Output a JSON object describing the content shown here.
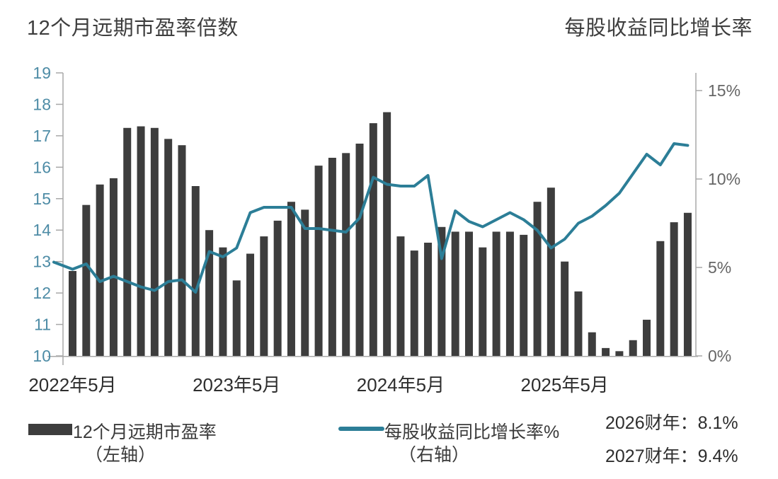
{
  "header": {
    "title_left": "12个月远期市盈率倍数",
    "title_right": "每股收益同比增长率"
  },
  "legend": {
    "bar_label": "12个月远期市盈率",
    "bar_sublabel": "（左轴）",
    "line_label": "每股收益同比增长率%",
    "line_sublabel": "（右轴）"
  },
  "annotations": {
    "fy2026": "2026财年：8.1%",
    "fy2027": "2027财年：9.4%"
  },
  "colors": {
    "bar": "#3d3d3d",
    "line": "#2c7e97",
    "axis": "#a8a8a8",
    "left_tick_label": "#4e8ca6",
    "right_tick_label": "#666666",
    "x_tick_label": "#2e2e2e"
  },
  "chart_data": {
    "type": "bar+line dual-axis",
    "title_left": "12个月远期市盈率倍数",
    "title_right": "每股收益同比增长率",
    "categories": [
      "2022-05",
      "2022-06",
      "2022-07",
      "2022-08",
      "2022-09",
      "2022-10",
      "2022-11",
      "2022-12",
      "2023-01",
      "2023-02",
      "2023-03",
      "2023-04",
      "2023-05",
      "2023-06",
      "2023-07",
      "2023-08",
      "2023-09",
      "2023-10",
      "2023-11",
      "2023-12",
      "2024-01",
      "2024-02",
      "2024-03",
      "2024-04",
      "2024-05",
      "2024-06",
      "2024-07",
      "2024-08",
      "2024-09",
      "2024-10",
      "2024-11",
      "2024-12",
      "2025-01",
      "2025-02",
      "2025-03",
      "2025-04",
      "2025-05",
      "2025-06",
      "2025-07",
      "2025-08",
      "2025-09",
      "2025-10",
      "2025-11",
      "2025-12",
      "2026-01",
      "2026-02"
    ],
    "series": [
      {
        "name": "12个月远期市盈率（左轴）",
        "type": "bar",
        "axis": "left",
        "values": [
          12.7,
          14.8,
          15.45,
          15.65,
          17.25,
          17.3,
          17.25,
          16.9,
          16.7,
          15.4,
          14.0,
          13.45,
          12.4,
          13.25,
          13.8,
          14.3,
          14.9,
          14.65,
          16.05,
          16.3,
          16.45,
          16.75,
          17.4,
          17.75,
          13.8,
          13.35,
          13.6,
          14.1,
          13.95,
          13.95,
          13.45,
          13.95,
          13.95,
          13.85,
          14.9,
          15.35,
          13.0,
          12.05,
          10.75,
          10.25,
          10.15,
          10.5,
          11.15,
          13.65,
          14.25,
          14.55
        ]
      },
      {
        "name": "每股收益同比增长率%（右轴）",
        "type": "line",
        "axis": "right",
        "lead_value": 5.3,
        "values": [
          4.9,
          5.2,
          4.2,
          4.5,
          4.2,
          3.9,
          3.7,
          4.2,
          4.3,
          3.6,
          5.9,
          5.6,
          6.1,
          8.1,
          8.4,
          8.4,
          8.4,
          7.2,
          7.2,
          7.1,
          7.0,
          7.8,
          10.1,
          9.7,
          9.6,
          9.6,
          10.2,
          5.5,
          8.2,
          7.6,
          7.3,
          7.7,
          8.1,
          7.7,
          7.1,
          6.1,
          6.6,
          7.5,
          7.9,
          8.5,
          9.2,
          10.3,
          11.4,
          10.8,
          12.0,
          11.9
        ]
      }
    ],
    "left_axis": {
      "min": 10,
      "max": 19,
      "ticks": [
        19,
        18,
        17,
        16,
        15,
        14,
        13,
        12,
        11,
        10
      ]
    },
    "right_axis": {
      "min": 0,
      "max": 16,
      "ticks": [
        "15%",
        "10%",
        "5%",
        "0%"
      ],
      "tick_values": [
        15,
        10,
        5,
        0
      ]
    },
    "x_tick_labels": [
      {
        "label": "2022年5月",
        "index": 0
      },
      {
        "label": "2023年5月",
        "index": 12
      },
      {
        "label": "2024年5月",
        "index": 24
      },
      {
        "label": "2025年5月",
        "index": 36
      }
    ],
    "annotations": [
      "2026财年：8.1%",
      "2027财年：9.4%"
    ],
    "legend": [
      "12个月远期市盈率（左轴）",
      "每股收益同比增长率%（右轴）"
    ],
    "grid": false,
    "legend_position": "bottom"
  }
}
